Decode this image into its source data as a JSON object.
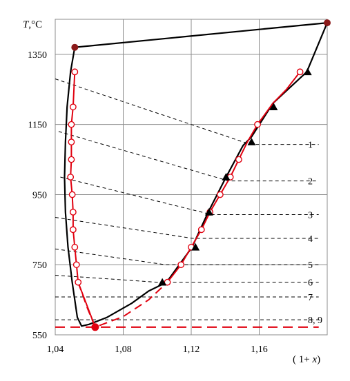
{
  "chart_data": {
    "type": "line",
    "ylabel_italic": "T",
    "ylabel_unit": ",°C",
    "xlabel_open": "( 1+ ",
    "xlabel_italic": "x",
    "xlabel_close": ")",
    "xlim": [
      1.04,
      1.2
    ],
    "ylim": [
      550,
      1450
    ],
    "xticks": [
      1.04,
      1.08,
      1.12,
      1.16
    ],
    "xtick_labels": [
      "1,04",
      "1,08",
      "1,12",
      "1,16"
    ],
    "yticks": [
      550,
      750,
      950,
      1150,
      1350
    ],
    "ytick_labels": [
      "550",
      "750",
      "950",
      "1150",
      "1350"
    ],
    "grid": true,
    "colors": {
      "black_curve": "#000000",
      "red_curve": "#e0000f",
      "marker_dark": "#8b1a1a"
    },
    "series": [
      {
        "kind": "boundary-black",
        "style": "solid",
        "points": [
          [
            1.0515,
            1370
          ],
          [
            1.2,
            1440
          ],
          [
            1.188,
            1300
          ],
          [
            1.168,
            1210
          ],
          [
            1.1555,
            1115
          ],
          [
            1.1505,
            1090
          ],
          [
            1.1405,
            1000
          ],
          [
            1.13,
            900
          ],
          [
            1.1205,
            800
          ],
          [
            1.1055,
            700
          ],
          [
            1.095,
            675
          ],
          [
            1.085,
            640
          ],
          [
            1.0705,
            600
          ],
          [
            1.06,
            580
          ],
          [
            1.0555,
            575
          ],
          [
            1.053,
            600
          ],
          [
            1.05,
            700
          ],
          [
            1.0475,
            800
          ],
          [
            1.046,
            900
          ],
          [
            1.0455,
            1000
          ],
          [
            1.046,
            1100
          ],
          [
            1.047,
            1200
          ],
          [
            1.049,
            1300
          ],
          [
            1.0515,
            1370
          ]
        ]
      },
      {
        "kind": "red-solid",
        "style": "solid",
        "points": [
          [
            1.0635,
            572
          ],
          [
            1.0535,
            700
          ],
          [
            1.0525,
            750
          ],
          [
            1.0515,
            800
          ],
          [
            1.0505,
            850
          ],
          [
            1.0505,
            900
          ],
          [
            1.05,
            950
          ],
          [
            1.049,
            1000
          ],
          [
            1.0495,
            1050
          ],
          [
            1.0495,
            1100
          ],
          [
            1.0495,
            1150
          ],
          [
            1.0505,
            1200
          ],
          [
            1.0515,
            1300
          ]
        ]
      },
      {
        "kind": "red-solid",
        "style": "solid",
        "points": [
          [
            1.106,
            700
          ],
          [
            1.114,
            750
          ],
          [
            1.12,
            800
          ],
          [
            1.126,
            850
          ],
          [
            1.131,
            900
          ],
          [
            1.137,
            950
          ],
          [
            1.143,
            1000
          ],
          [
            1.148,
            1050
          ],
          [
            1.153,
            1100
          ],
          [
            1.159,
            1150
          ],
          [
            1.168,
            1210
          ],
          [
            1.176,
            1250
          ],
          [
            1.184,
            1300
          ]
        ]
      },
      {
        "kind": "red-dashed",
        "style": "dashed",
        "points": [
          [
            1.0535,
            700
          ],
          [
            1.059,
            625
          ],
          [
            1.0635,
            572
          ],
          [
            1.08,
            602
          ],
          [
            1.095,
            650
          ],
          [
            1.106,
            700
          ]
        ]
      }
    ],
    "open_circles": [
      [
        1.0515,
        1300
      ],
      [
        1.0505,
        1200
      ],
      [
        1.0495,
        1150
      ],
      [
        1.0495,
        1100
      ],
      [
        1.0495,
        1050
      ],
      [
        1.049,
        1000
      ],
      [
        1.05,
        950
      ],
      [
        1.0505,
        900
      ],
      [
        1.0505,
        850
      ],
      [
        1.0515,
        800
      ],
      [
        1.0525,
        750
      ],
      [
        1.0535,
        700
      ],
      [
        1.184,
        1300
      ],
      [
        1.159,
        1150
      ],
      [
        1.148,
        1050
      ],
      [
        1.143,
        1000
      ],
      [
        1.137,
        950
      ],
      [
        1.131,
        900
      ],
      [
        1.126,
        850
      ],
      [
        1.12,
        800
      ],
      [
        1.114,
        750
      ],
      [
        1.106,
        700
      ]
    ],
    "triangles": [
      [
        1.1885,
        1300
      ],
      [
        1.1685,
        1200
      ],
      [
        1.1555,
        1100
      ],
      [
        1.1405,
        1000
      ],
      [
        1.1305,
        900
      ],
      [
        1.1225,
        800
      ],
      [
        1.103,
        700
      ]
    ],
    "filled_points": [
      [
        1.0515,
        1370
      ],
      [
        1.2,
        1440
      ]
    ],
    "eutectic_point": [
      1.0635,
      572
    ],
    "eutectic_line": {
      "y": 572,
      "x": [
        1.04,
        1.195
      ]
    },
    "tie_lines": [
      {
        "label": "1",
        "from": [
          1.04,
          1280
        ],
        "to": [
          1.155,
          1093
        ],
        "end_y": 1093
      },
      {
        "label": "2",
        "from": [
          1.042,
          1130
        ],
        "to": [
          1.142,
          989
        ],
        "end_y": 989
      },
      {
        "label": "3",
        "from": [
          1.043,
          1000
        ],
        "to": [
          1.132,
          893
        ],
        "end_y": 893
      },
      {
        "label": "4",
        "from": [
          1.04,
          885
        ],
        "to": [
          1.121,
          825
        ],
        "end_y": 825
      },
      {
        "label": "5",
        "from": [
          1.04,
          795
        ],
        "to": [
          1.105,
          750
        ],
        "end_y": 750
      },
      {
        "label": "6",
        "from": [
          1.04,
          720
        ],
        "to": [
          1.1,
          700
        ],
        "end_y": 700
      },
      {
        "label": "7",
        "from": [
          1.04,
          658
        ],
        "to": [
          1.195,
          658
        ],
        "end_y": 658
      },
      {
        "label": "8, 9",
        "from": [
          1.04,
          593
        ],
        "to": [
          1.195,
          593
        ],
        "end_y": 593
      }
    ]
  }
}
